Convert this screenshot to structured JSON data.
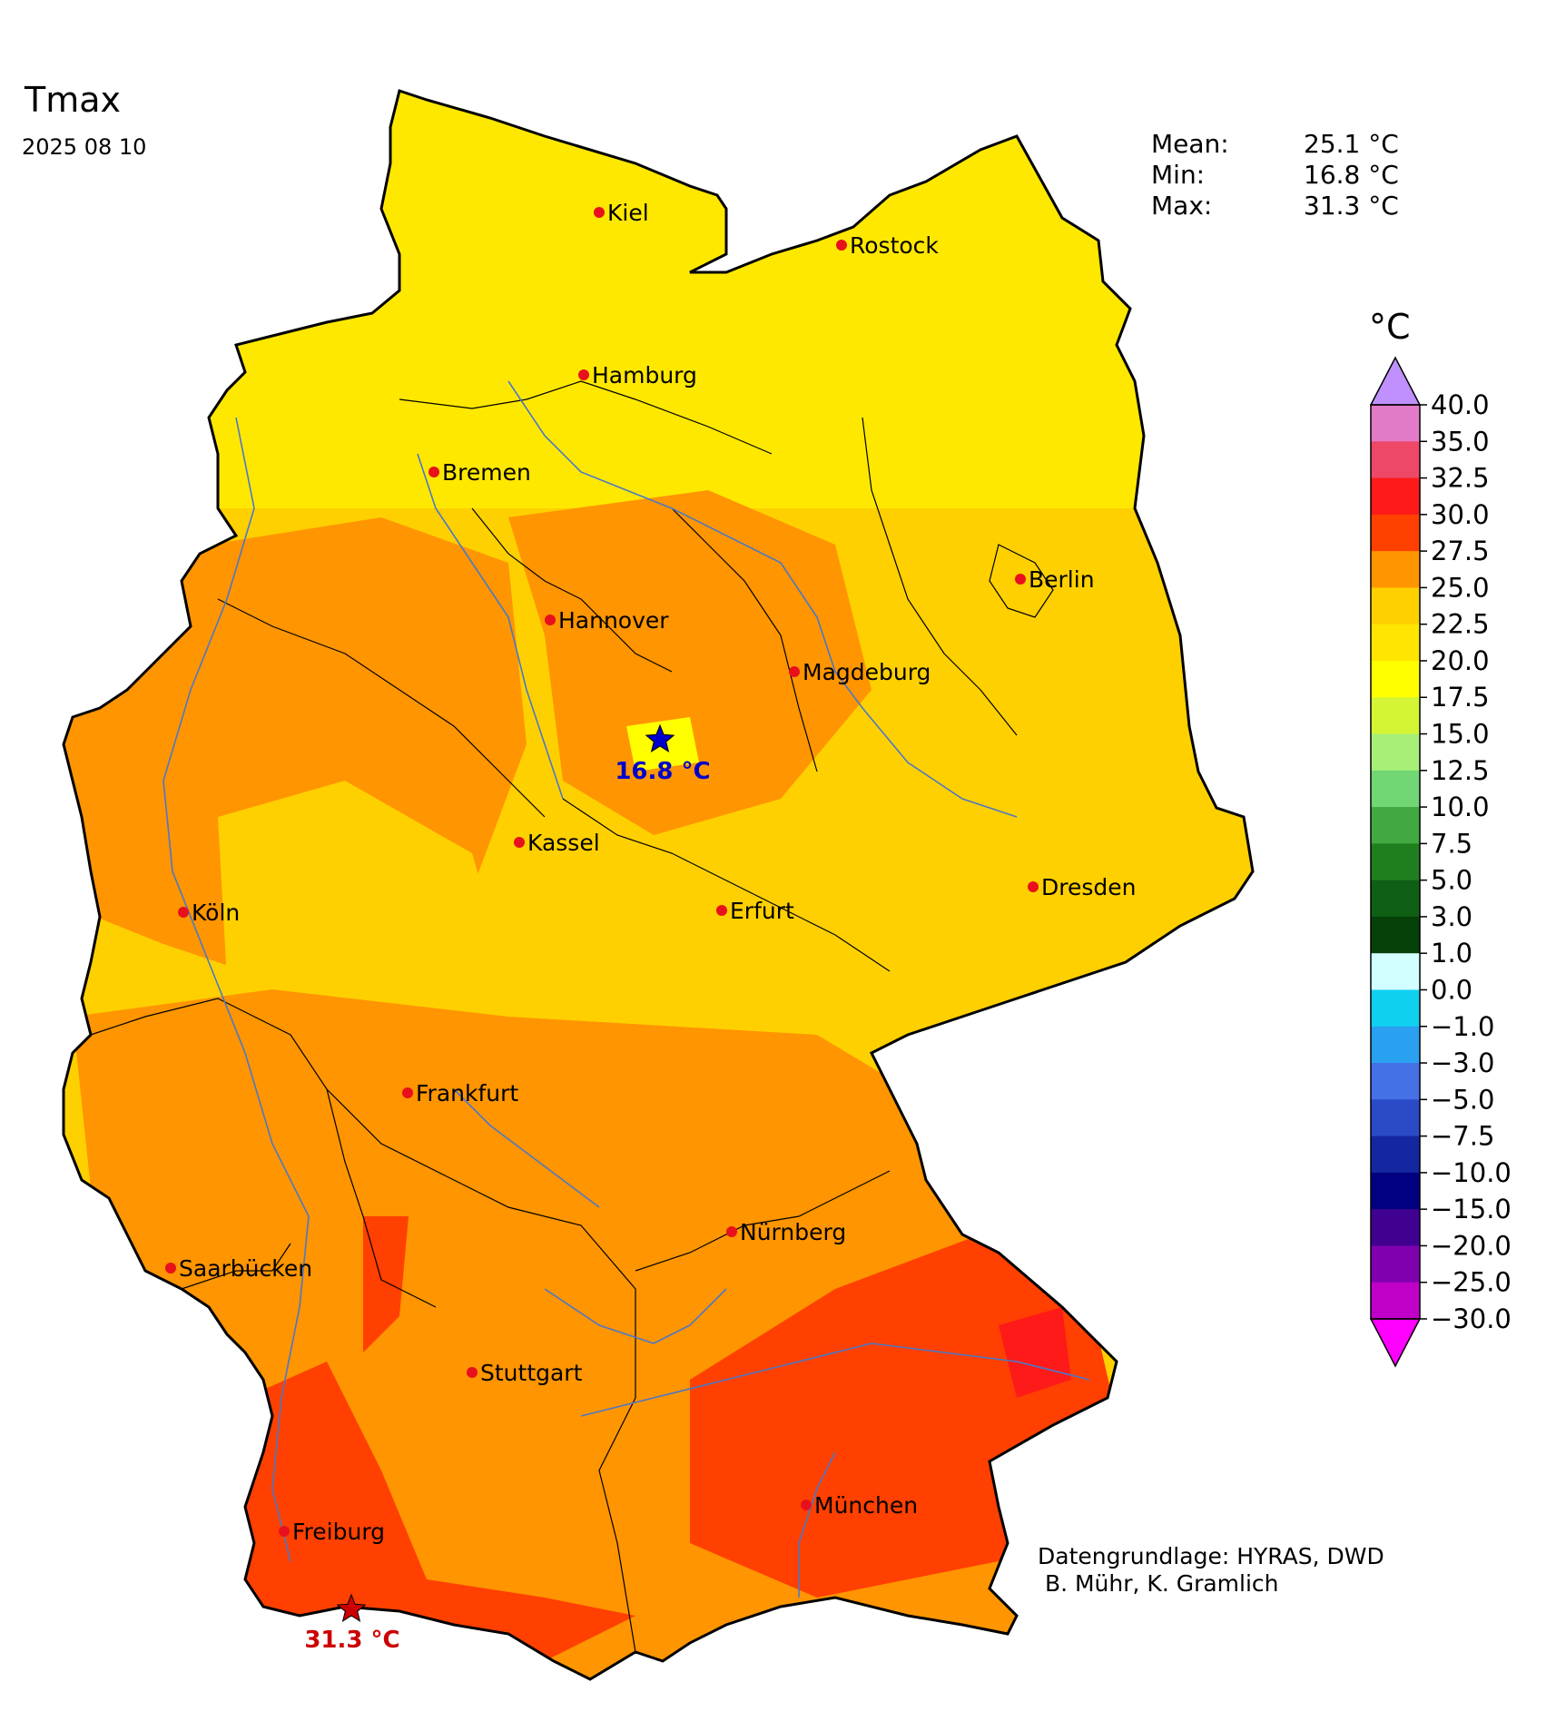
{
  "title": "Tmax",
  "date": "2025 08 10",
  "stats": [
    {
      "label": "Mean:",
      "value": "25.1 °C"
    },
    {
      "label": "Min:",
      "value": "16.8 °C"
    },
    {
      "label": "Max:",
      "value": "31.3 °C"
    }
  ],
  "legend": {
    "unit": "°C",
    "ticks": [
      "40.0",
      "35.0",
      "32.5",
      "30.0",
      "27.5",
      "25.0",
      "22.5",
      "20.0",
      "17.5",
      "15.0",
      "12.5",
      "10.0",
      "7.5",
      "5.0",
      "3.0",
      "1.0",
      "0.0",
      "−1.0",
      "−3.0",
      "−5.0",
      "−7.5",
      "−10.0",
      "−15.0",
      "−20.0",
      "−25.0",
      "−30.0"
    ],
    "colors": [
      "#e27ac7",
      "#ee4868",
      "#ff1a1a",
      "#ff4000",
      "#ff9500",
      "#ffd000",
      "#ffe500",
      "#ffff00",
      "#d4f534",
      "#a8ef78",
      "#72d674",
      "#42a842",
      "#1f7f1f",
      "#0f5f15",
      "#064009",
      "#d2ffff",
      "#10d0f0",
      "#2aa0f0",
      "#4570e6",
      "#2a4ac8",
      "#1426a0",
      "#000080",
      "#400090",
      "#8000b0",
      "#c000c8"
    ],
    "top_cap_color": "#c090ff",
    "bottom_cap_color": "#ff00ff"
  },
  "cities": [
    {
      "name": "Kiel"
    },
    {
      "name": "Rostock"
    },
    {
      "name": "Hamburg"
    },
    {
      "name": "Bremen"
    },
    {
      "name": "Berlin"
    },
    {
      "name": "Hannover"
    },
    {
      "name": "Magdeburg"
    },
    {
      "name": "Kassel"
    },
    {
      "name": "Köln"
    },
    {
      "name": "Erfurt"
    },
    {
      "name": "Dresden"
    },
    {
      "name": "Frankfurt"
    },
    {
      "name": "Nürnberg"
    },
    {
      "name": "Saarbücken"
    },
    {
      "name": "Stuttgart"
    },
    {
      "name": "München"
    },
    {
      "name": "Freiburg"
    }
  ],
  "extremes": {
    "min_label": "16.8 °C",
    "max_label": "31.3 °C",
    "min_color": "#0000cc",
    "max_color": "#cc0000"
  },
  "credit": "Datengrundlage: HYRAS, DWD\n B. Mühr, K. Gramlich"
}
